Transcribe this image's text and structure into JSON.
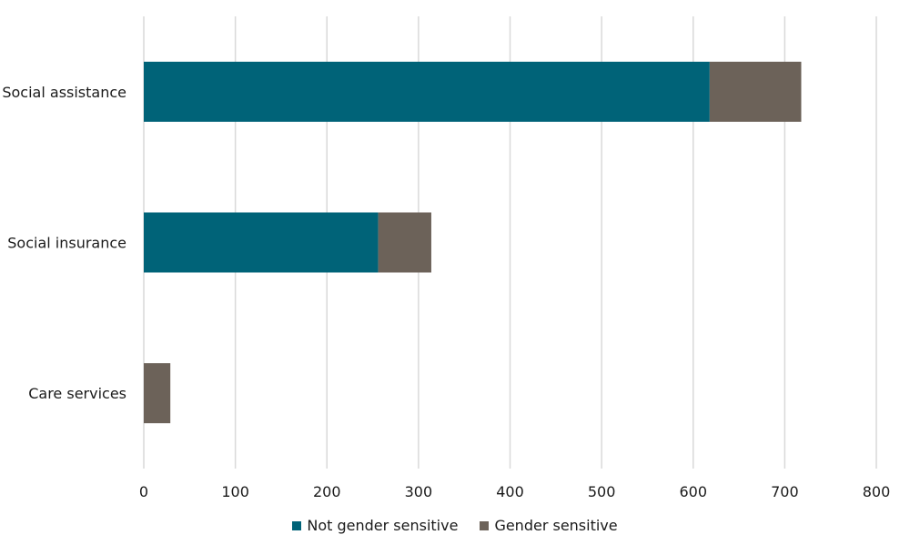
{
  "chart_data": {
    "type": "bar",
    "orientation": "horizontal",
    "stacked": true,
    "title": "",
    "xlabel": "",
    "ylabel": "",
    "categories": [
      "Social assistance",
      "Social insurance",
      "Care services"
    ],
    "series": [
      {
        "name": "Not gender sensitive",
        "color": "#006378",
        "values": [
          618,
          256,
          0
        ]
      },
      {
        "name": "Gender sensitive",
        "color": "#6c6259",
        "values": [
          100,
          58,
          29
        ]
      }
    ],
    "xlim": [
      0,
      800
    ],
    "xticks": [
      0,
      100,
      200,
      300,
      400,
      500,
      600,
      700,
      800
    ],
    "grid": "vertical",
    "legend_position": "bottom"
  }
}
